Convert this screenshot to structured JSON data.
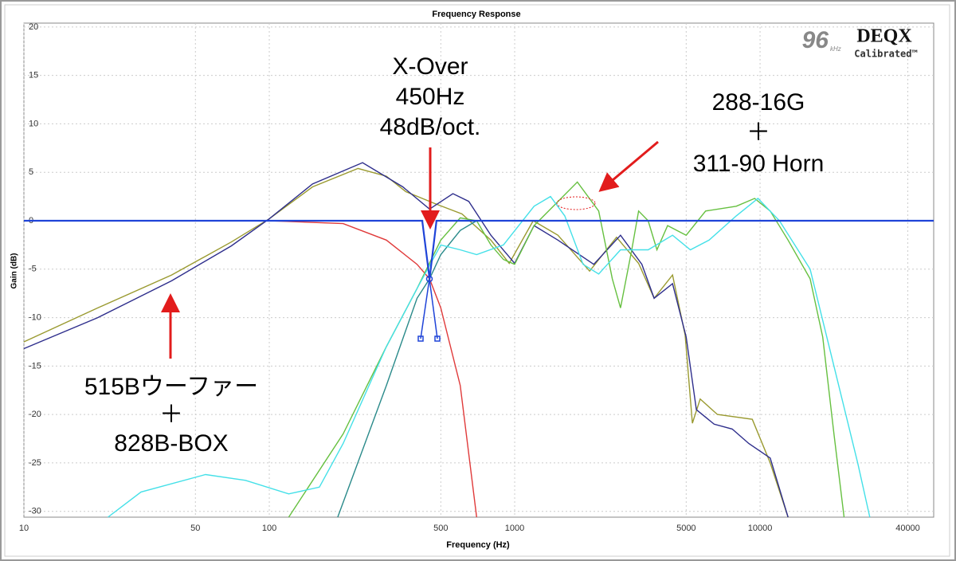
{
  "chart_data": {
    "type": "line",
    "title": "Frequency Response",
    "xlabel": "Frequency (Hz)",
    "ylabel": "Gain (dB)",
    "xscale": "log",
    "xlim": [
      10,
      51000
    ],
    "ylim": [
      -30.6,
      20.4
    ],
    "xticks": [
      10,
      50,
      100,
      500,
      1000,
      5000,
      10000,
      40000
    ],
    "yticks": [
      20,
      15,
      10,
      5,
      0,
      -5,
      -10,
      -15,
      -20,
      -25,
      -30
    ],
    "grid": true,
    "series": [
      {
        "color": "#9a9a30",
        "x": [
          10,
          20,
          40,
          70,
          100,
          150,
          230,
          300,
          360,
          470,
          610,
          800,
          950,
          1190,
          1500,
          2020,
          2600,
          3200,
          3700,
          4400,
          4950,
          5300,
          5700,
          6700,
          9300,
          11000,
          13000
        ],
        "values": [
          -12.5,
          -9,
          -5.6,
          -2.2,
          0.2,
          3.5,
          5.4,
          4.6,
          3,
          1.8,
          0.7,
          -2,
          -4.4,
          0,
          -1.5,
          -5.2,
          -1.7,
          -4.4,
          -8,
          -5.6,
          -11.8,
          -20.9,
          -18.4,
          -20,
          -20.5,
          -25,
          -30.6
        ]
      },
      {
        "color": "#2e2e8c",
        "x": [
          10,
          20,
          40,
          70,
          100,
          150,
          240,
          350,
          450,
          560,
          650,
          800,
          1000,
          1200,
          1500,
          2100,
          2700,
          3300,
          3700,
          4400,
          5000,
          5500,
          6500,
          7700,
          9000,
          11000,
          13000
        ],
        "values": [
          -13.2,
          -10,
          -6.2,
          -2.6,
          0.2,
          3.8,
          6,
          3.5,
          1.2,
          2.8,
          2,
          -1.5,
          -4.4,
          -0.5,
          -2,
          -4.5,
          -1.5,
          -4.5,
          -8,
          -6.5,
          -12,
          -19.5,
          -21,
          -21.5,
          -23,
          -24.5,
          -30.6
        ]
      },
      {
        "color": "#e03a3a",
        "x": [
          46,
          100,
          200,
          300,
          400,
          450,
          500,
          600,
          700
        ],
        "values": [
          0,
          0,
          -0.3,
          -2,
          -4.5,
          -6,
          -9,
          -17,
          -30.6
        ]
      },
      {
        "color": "#2a8a8a",
        "x": [
          190,
          300,
          400,
          450,
          500,
          600,
          700,
          51000
        ],
        "values": [
          -30.6,
          -17,
          -8,
          -6,
          -3.5,
          -1,
          0,
          0
        ]
      },
      {
        "color": "#66c040",
        "x": [
          120,
          200,
          300,
          400,
          500,
          600,
          700,
          800,
          900,
          1000,
          1200,
          1800,
          2200,
          2500,
          2700,
          3000,
          3200,
          3500,
          3800,
          4200,
          5000,
          6000,
          8000,
          9500,
          11000,
          13000,
          16000,
          18000,
          20000,
          22000
        ],
        "values": [
          -30.6,
          -22,
          -13,
          -7,
          -2,
          0.3,
          0,
          -2.5,
          -4,
          -4.5,
          -0.5,
          4,
          1,
          -6,
          -9,
          -3,
          1,
          0,
          -3,
          -0.5,
          -1.5,
          1,
          1.5,
          2.3,
          1,
          -2,
          -6,
          -12,
          -22,
          -30.6
        ]
      },
      {
        "color": "#44e0e8",
        "x": [
          22,
          30,
          55,
          80,
          120,
          160,
          200,
          300,
          400,
          500,
          600,
          700,
          900,
          1200,
          1400,
          1600,
          1900,
          2200,
          2700,
          3500,
          4400,
          5200,
          6200,
          8000,
          9800,
          12000,
          16000,
          20000,
          25000,
          28000
        ],
        "values": [
          -30.6,
          -28,
          -26.2,
          -26.8,
          -28.2,
          -27.5,
          -23,
          -13,
          -7,
          -2.5,
          -3,
          -3.5,
          -2.5,
          1.5,
          2.5,
          0.5,
          -4.5,
          -5.5,
          -3,
          -3,
          -1.5,
          -3,
          -2,
          0.5,
          2.3,
          0,
          -5,
          -15,
          -25,
          -30.6
        ]
      },
      {
        "color": "#1f44d8",
        "x": [
          10,
          420,
          450,
          480,
          51000
        ],
        "values": [
          0,
          0,
          -6,
          0,
          0
        ]
      }
    ],
    "annotations": {
      "xover": [
        "X-Over",
        "450Hz",
        "48dB/oct."
      ],
      "horn": [
        "288-16G",
        "＋",
        "311-90 Horn"
      ],
      "woofer": [
        "515Bウーファー",
        "＋",
        "828B-BOX"
      ]
    }
  },
  "logo": {
    "rate": "96",
    "unit": "kHz",
    "brand": "DEQX",
    "tag": "Calibrated™"
  }
}
